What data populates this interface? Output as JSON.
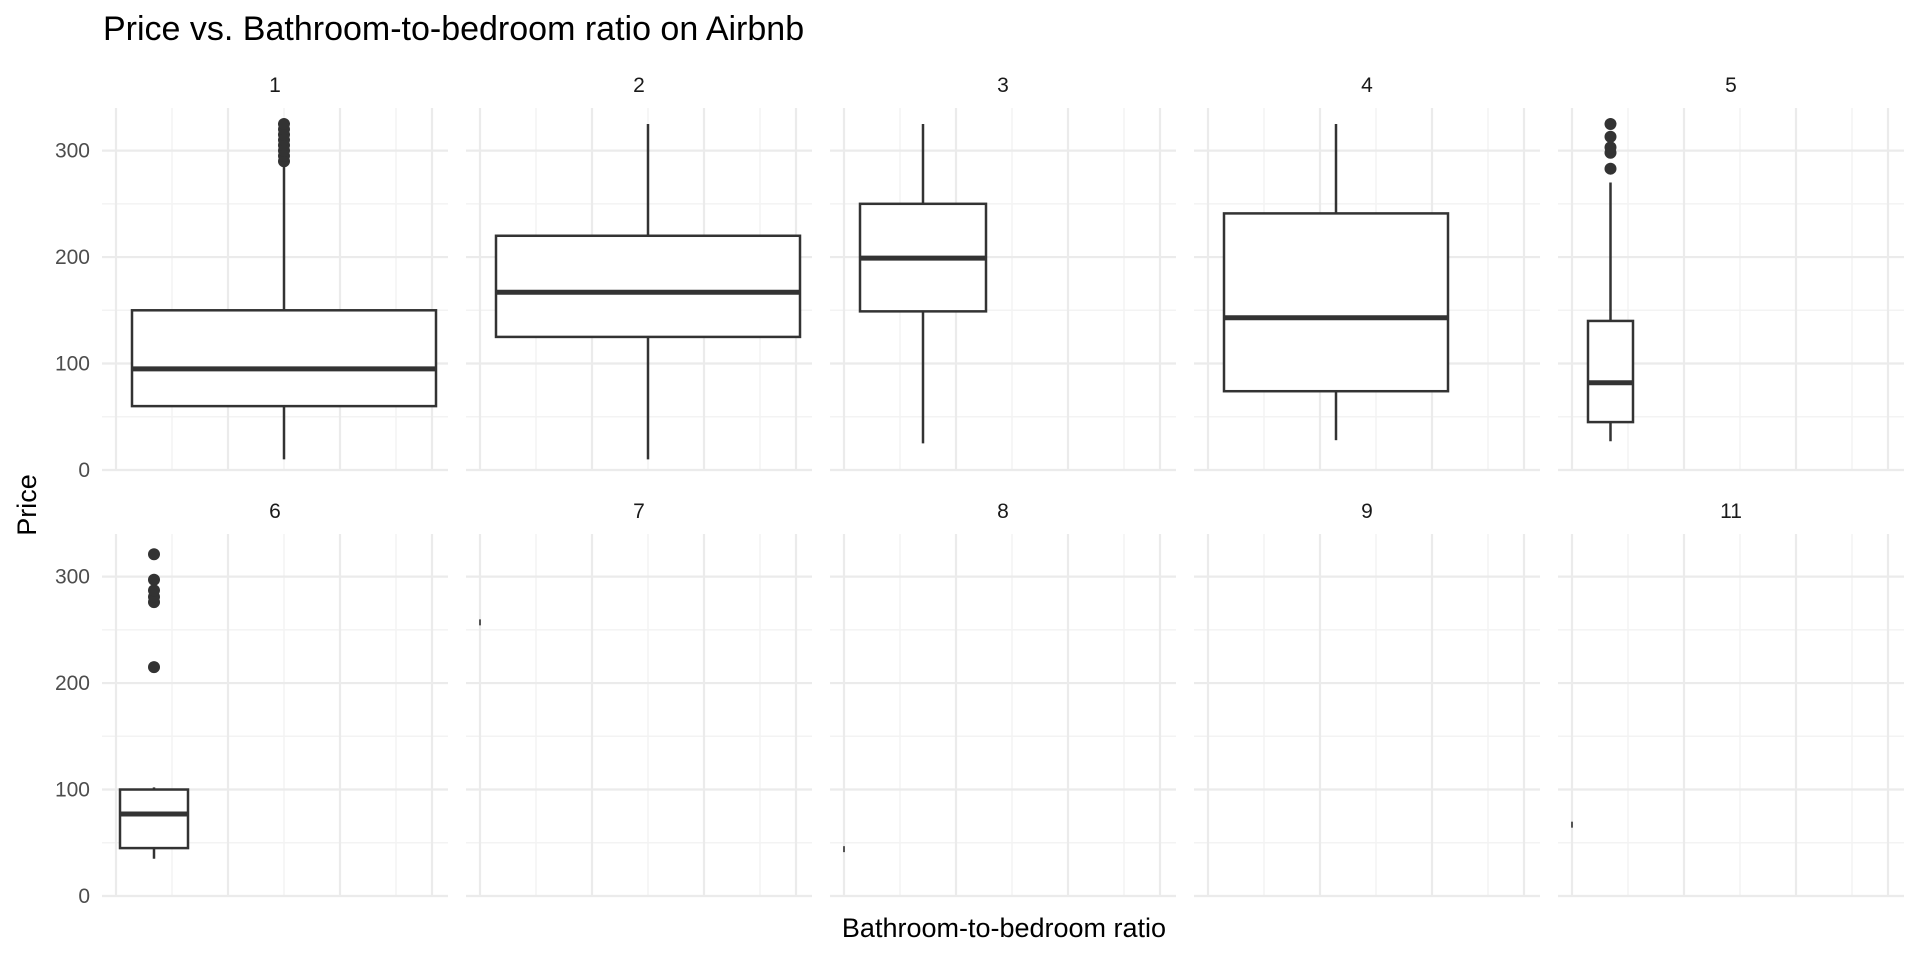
{
  "chart_data": {
    "type": "boxplot",
    "title": "Price vs. Bathroom-to-bedroom ratio on Airbnb",
    "xlabel": "Bathroom-to-bedroom ratio",
    "ylabel": "Price",
    "facet_by": "bedrooms",
    "ylim": [
      0,
      340
    ],
    "yticks": [
      0,
      100,
      200,
      300
    ],
    "grid": true,
    "theme": "minimal",
    "colors": {
      "box": "#333333",
      "grid_major": "#ebebeb",
      "grid_minor": "#f3f3f3",
      "background": "#ffffff"
    },
    "panels": [
      {
        "label": "1",
        "q1": 60,
        "median": 95,
        "q3": 150,
        "whisker_low": 10,
        "whisker_high": 285,
        "outliers": [
          290,
          295,
          300,
          305,
          310,
          315,
          320,
          325
        ]
      },
      {
        "label": "2",
        "q1": 125,
        "median": 167,
        "q3": 220,
        "whisker_low": 10,
        "whisker_high": 325,
        "outliers": []
      },
      {
        "label": "3",
        "q1": 149,
        "median": 199,
        "q3": 250,
        "whisker_low": 25,
        "whisker_high": 325,
        "outliers": []
      },
      {
        "label": "4",
        "q1": 74,
        "median": 143,
        "q3": 241,
        "whisker_low": 28,
        "whisker_high": 325,
        "outliers": []
      },
      {
        "label": "5",
        "q1": 45,
        "median": 82,
        "q3": 140,
        "whisker_low": 27,
        "whisker_high": 270,
        "outliers": [
          283,
          298,
          303,
          313,
          325
        ]
      },
      {
        "label": "6",
        "q1": 45,
        "median": 77,
        "q3": 100,
        "whisker_low": 35,
        "whisker_high": 102,
        "outliers": [
          215,
          276,
          281,
          287,
          297,
          321
        ]
      },
      {
        "label": "7",
        "single_value": 257
      },
      {
        "label": "8",
        "single_value": 44
      },
      {
        "label": "9"
      },
      {
        "label": "11",
        "single_value": 67
      }
    ]
  }
}
